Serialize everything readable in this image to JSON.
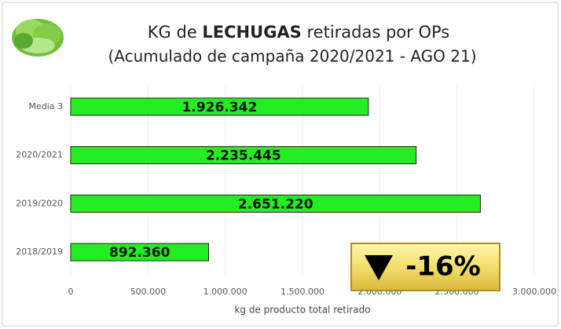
{
  "chart_data": {
    "type": "hbar",
    "title": [
      "KG de ",
      "LECHUGAS",
      " retiradas por OPs"
    ],
    "subtitle": "(Acumulado de campaña 2020/2021 - AGO 21)",
    "categories": [
      "Media 3",
      "2020/2021",
      "2019/2020",
      "2018/2019"
    ],
    "values": [
      1926342,
      2235445,
      2651220,
      892360
    ],
    "value_labels": [
      "1.926.342",
      "2.235.445",
      "2.651.220",
      "892.360"
    ],
    "color": "#22ee22",
    "xlim": [
      0,
      3000000
    ],
    "xticks": [
      0,
      {
        "value": 500000,
        "label": "500.000"
      },
      {
        "value": 1000000,
        "label": "1.000.000"
      },
      {
        "value": 1500000,
        "label": "1.500.000"
      },
      {
        "value": 2000000,
        "label": "2.000.000"
      },
      {
        "value": 2500000,
        "label": "2.500.000"
      },
      {
        "value": 3000000,
        "label": "3.000.000"
      }
    ],
    "xlabel": "kg de producto total retirado",
    "grid": true,
    "annotation": "-16%"
  }
}
